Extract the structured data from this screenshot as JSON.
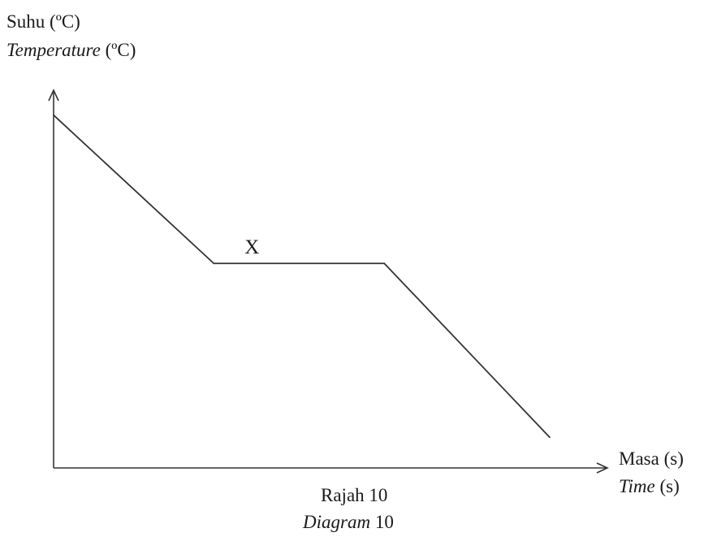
{
  "chart_data": {
    "type": "line",
    "ylabel": {
      "ms": "Suhu",
      "en": "Temperature",
      "unit": "(ºC)"
    },
    "xlabel": {
      "ms": "Masa",
      "en": "Time",
      "unit": "(s)"
    },
    "caption": {
      "ms_word": "Rajah",
      "en_word": "Diagram",
      "number": "10"
    },
    "annotations": [
      {
        "text": "X",
        "segment": "plateau"
      }
    ],
    "series": [
      {
        "x": [
          0,
          3.1,
          6.4,
          9.6
        ],
        "y": [
          6.9,
          4.0,
          4.0,
          0.6
        ]
      }
    ],
    "xlim": [
      0,
      11
    ],
    "ylim": [
      0,
      8.5
    ],
    "grid": false,
    "ticks": false,
    "line_color": "#333333"
  }
}
